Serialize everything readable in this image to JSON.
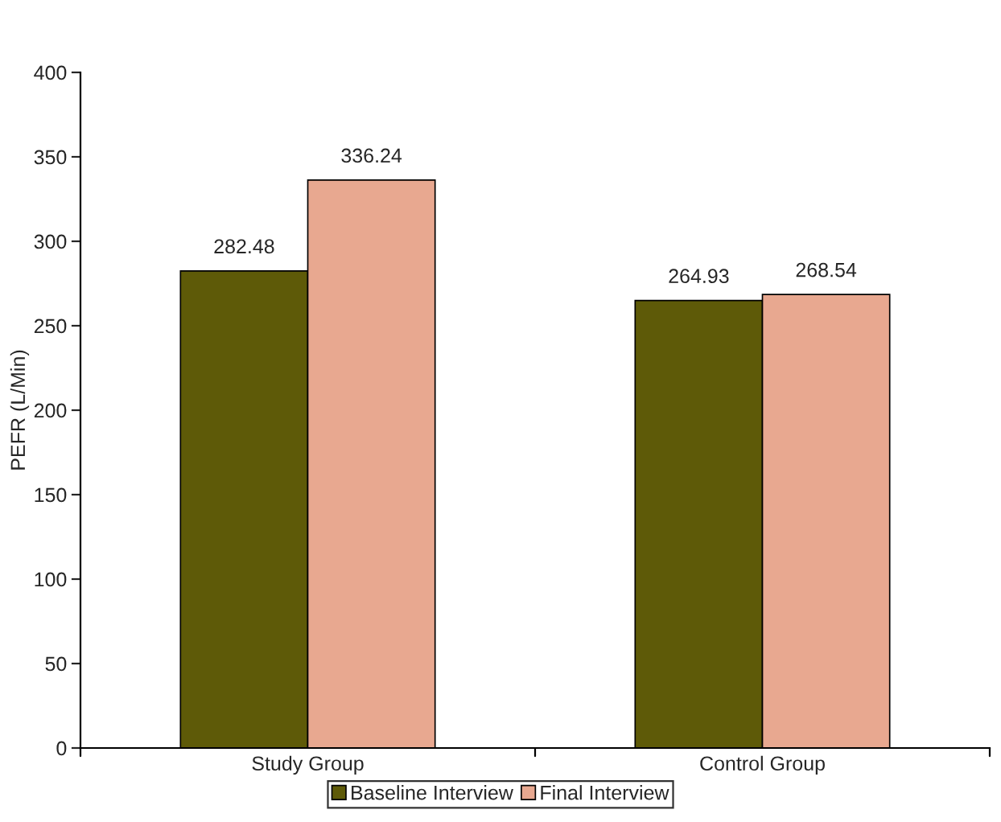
{
  "chart_data": {
    "type": "bar",
    "ylabel": "PEFR (L/Min)",
    "categories": [
      "Study Group",
      "Control Group"
    ],
    "series": [
      {
        "name": "Baseline Interview",
        "color": "#5e5a08",
        "values": [
          282.48,
          264.93
        ]
      },
      {
        "name": "Final Interview",
        "color": "#e8a890",
        "values": [
          336.24,
          268.54
        ]
      }
    ],
    "ylim": [
      0,
      400
    ],
    "yticks": [
      0,
      50,
      100,
      150,
      200,
      250,
      300,
      350,
      400
    ],
    "data_labels": true,
    "legend": "bottom",
    "grid": false
  }
}
